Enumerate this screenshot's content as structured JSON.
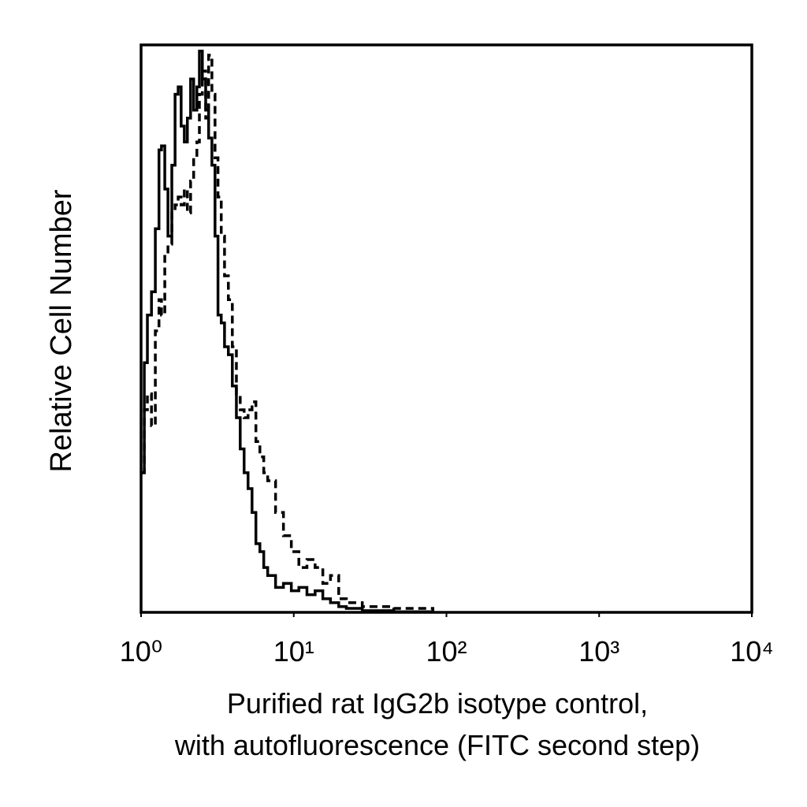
{
  "chart_data": {
    "type": "histogram-line",
    "xlabel": [
      "Purified rat IgG2b isotype control,",
      "with autofluorescence (FITC second step)"
    ],
    "ylabel": "Relative Cell Number",
    "xscale": "log",
    "xlim": [
      1,
      10000
    ],
    "xticks": [
      {
        "value": 1,
        "label": "10⁰"
      },
      {
        "value": 10,
        "label": "10¹"
      },
      {
        "value": 100,
        "label": "10²"
      },
      {
        "value": 1000,
        "label": "10³"
      },
      {
        "value": 10000,
        "label": "10⁴"
      }
    ],
    "ylim": [
      0,
      100
    ],
    "x": [
      1.0,
      1.05,
      1.1,
      1.17,
      1.24,
      1.31,
      1.36,
      1.43,
      1.5,
      1.59,
      1.67,
      1.75,
      1.83,
      1.92,
      2.01,
      2.11,
      2.21,
      2.32,
      2.41,
      2.52,
      2.65,
      2.77,
      2.91,
      3.05,
      3.19,
      3.35,
      3.52,
      3.73,
      3.96,
      4.21,
      4.46,
      4.73,
      5.02,
      5.33,
      5.65,
      6.0,
      6.36,
      6.75,
      7.6,
      8.56,
      9.64,
      10.8,
      12.2,
      13.8,
      15.5,
      17.4,
      19.7,
      22.1,
      28.1,
      45.2,
      81.5
    ],
    "series": [
      {
        "color": "#000000",
        "style": "solid",
        "values": [
          24.6,
          44.0,
          52.4,
          56.5,
          67.6,
          81.5,
          82.2,
          74.6,
          66.3,
          78.8,
          91.3,
          92.6,
          85.7,
          82.9,
          87.1,
          94.0,
          88.5,
          92.6,
          98.9,
          94.0,
          88.5,
          83.6,
          78.8,
          66.3,
          52.4,
          51.0,
          46.8,
          45.4,
          39.9,
          34.3,
          28.8,
          24.6,
          21.8,
          17.6,
          12.1,
          10.7,
          7.9,
          6.5,
          4.4,
          5.1,
          3.8,
          4.4,
          3.1,
          3.8,
          2.4,
          1.7,
          1.0,
          0.7,
          0.3,
          0.1,
          0
        ]
      },
      {
        "color": "#000000",
        "style": "dashed",
        "values": [
          24.6,
          35.7,
          38.5,
          32.9,
          49.6,
          55.1,
          52.4,
          63.5,
          64.9,
          70.4,
          71.8,
          73.2,
          71.8,
          74.6,
          70.4,
          76.0,
          80.1,
          82.9,
          91.3,
          95.4,
          87.1,
          98.2,
          91.3,
          80.1,
          73.2,
          66.3,
          59.3,
          55.1,
          46.8,
          38.5,
          35.7,
          34.3,
          35.7,
          37.1,
          30.1,
          27.4,
          24.6,
          23.2,
          17.6,
          13.5,
          10.7,
          7.9,
          9.3,
          7.9,
          5.1,
          6.5,
          2.4,
          1.7,
          1.0,
          0.7,
          0.1
        ]
      }
    ]
  }
}
